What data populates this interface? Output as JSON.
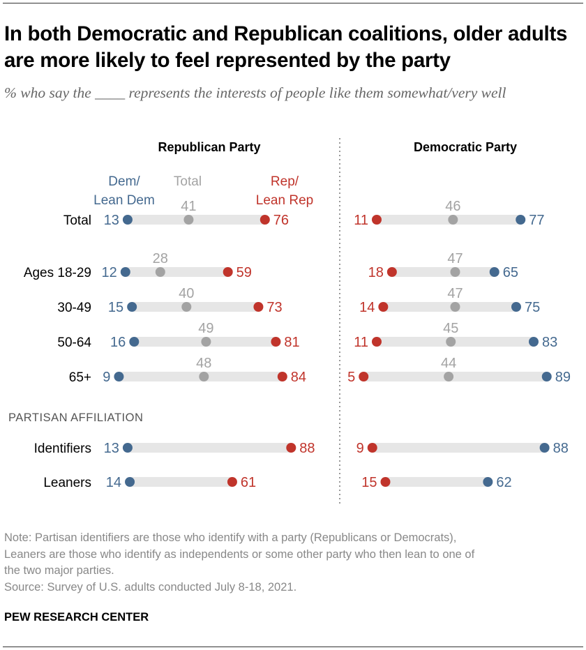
{
  "title": "In both Democratic and Republican coalitions, older adults are more likely to feel represented by the party",
  "subtitle": "% who say the ____ represents the interests of people like them somewhat/very well",
  "notes": [
    "Note: Partisan identifiers are those who identify with a party (Republicans or Democrats),",
    "Leaners are those who identify as independents or some other party who then lean to one of",
    "the two major parties.",
    "Source: Survey of U.S. adults conducted July 8-18, 2021."
  ],
  "brand": "PEW RESEARCH CENTER",
  "colors": {
    "dem": "#44698f",
    "rep": "#c0342b",
    "total": "#a3a3a3",
    "bar": "#e6e6e6"
  },
  "chart_data": {
    "type": "dot",
    "legend": [
      {
        "name": "Dem/\nLean Dem",
        "color": "#44698f"
      },
      {
        "name": "Total",
        "color": "#a3a3a3"
      },
      {
        "name": "Rep/\nLean Rep",
        "color": "#c0342b"
      }
    ],
    "section_label": "PARTISAN AFFILIATION",
    "categories": [
      "Total",
      "Ages 18-29",
      "30-49",
      "50-64",
      "65+",
      "Identifiers",
      "Leaners"
    ],
    "panels": [
      {
        "title": "Republican Party",
        "series": [
          {
            "name": "Dem/Lean Dem",
            "values": [
              13,
              12,
              15,
              16,
              9,
              13,
              14
            ]
          },
          {
            "name": "Total",
            "values": [
              41,
              28,
              40,
              49,
              48,
              null,
              null
            ]
          },
          {
            "name": "Rep/Lean Rep",
            "values": [
              76,
              59,
              73,
              81,
              84,
              88,
              61
            ]
          }
        ]
      },
      {
        "title": "Democratic Party",
        "series": [
          {
            "name": "Dem/Lean Dem",
            "values": [
              77,
              65,
              75,
              83,
              89,
              88,
              62
            ]
          },
          {
            "name": "Total",
            "values": [
              46,
              47,
              47,
              45,
              44,
              null,
              null
            ]
          },
          {
            "name": "Rep/Lean Rep",
            "values": [
              11,
              18,
              14,
              11,
              5,
              9,
              15
            ]
          }
        ]
      }
    ]
  }
}
